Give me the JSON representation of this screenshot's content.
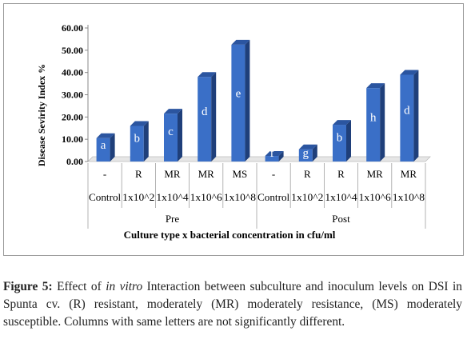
{
  "chart_data": {
    "type": "bar",
    "ylabel": "Disease Sevirity Index %",
    "xlabel": "Culture type x bacterial concentration in cfu/ml",
    "y_ticks": [
      "0.00",
      "10.00",
      "20.00",
      "30.00",
      "40.00",
      "50.00",
      "60.00"
    ],
    "ylim": [
      0,
      60
    ],
    "grid": false,
    "bar_color": "#3a6fc7",
    "bar_top_color": "#2b55a0",
    "bar_side_color": "#1f3f7a",
    "bars": [
      {
        "group": "Pre",
        "culture": "-",
        "concentration": "Control",
        "value": 10.5,
        "letter": "a"
      },
      {
        "group": "Pre",
        "culture": "R",
        "concentration": "1x10^2",
        "value": 16.0,
        "letter": "b"
      },
      {
        "group": "Pre",
        "culture": "MR",
        "concentration": "1x10^4",
        "value": 21.5,
        "letter": "c"
      },
      {
        "group": "Pre",
        "culture": "MR",
        "concentration": "1x10^6",
        "value": 38.0,
        "letter": "d"
      },
      {
        "group": "Pre",
        "culture": "MS",
        "concentration": "1x10^8",
        "value": 52.5,
        "letter": "e"
      },
      {
        "group": "Post",
        "culture": "-",
        "concentration": "Control",
        "value": 2.5,
        "letter": "f"
      },
      {
        "group": "Post",
        "culture": "R",
        "concentration": "1x10^2",
        "value": 5.5,
        "letter": "g"
      },
      {
        "group": "Post",
        "culture": "R",
        "concentration": "1x10^4",
        "value": 16.5,
        "letter": "b"
      },
      {
        "group": "Post",
        "culture": "MR",
        "concentration": "1x10^6",
        "value": 33.0,
        "letter": "h"
      },
      {
        "group": "Post",
        "culture": "MR",
        "concentration": "1x10^8",
        "value": 39.0,
        "letter": "d"
      }
    ],
    "groups": [
      "Pre",
      "Post"
    ]
  },
  "caption": {
    "label": "Figure 5:",
    "text_before_italic": " Effect of ",
    "italic": "in vitro",
    "text_after_italic": " Interaction between subculture and inoculum levels on DSI in Spunta cv. (R) resistant, moderately (MR) moderately resistance, (MS) moderately susceptible. Columns with same letters are not significantly different."
  }
}
